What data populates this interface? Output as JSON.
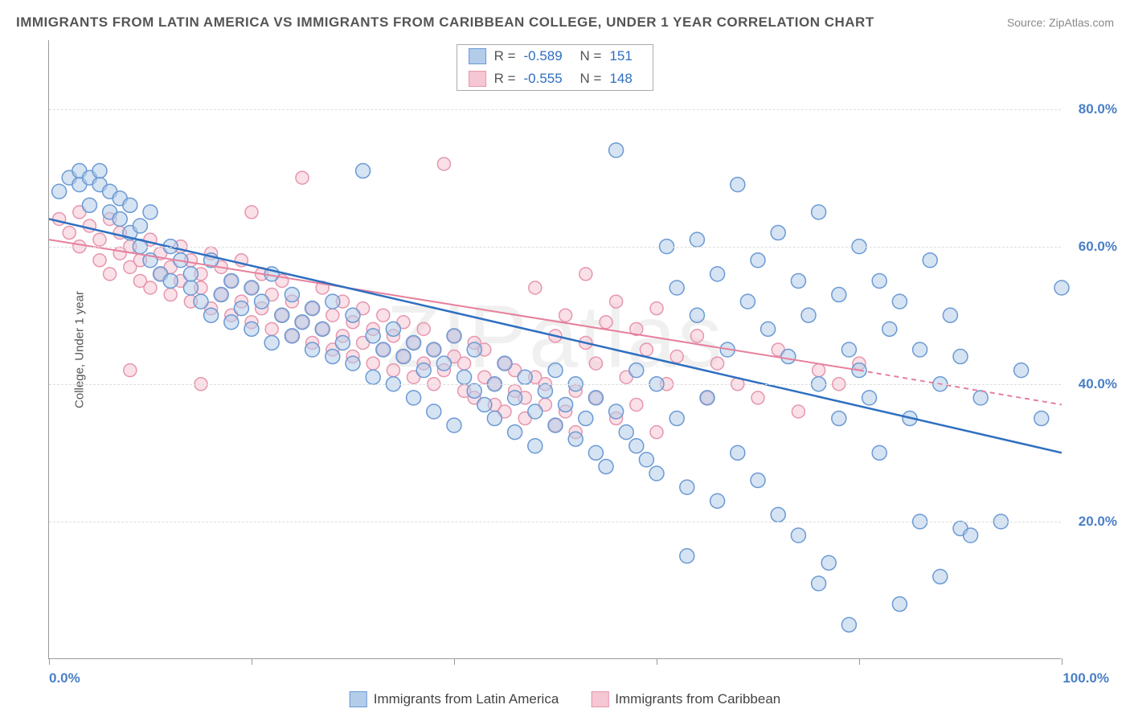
{
  "title": "IMMIGRANTS FROM LATIN AMERICA VS IMMIGRANTS FROM CARIBBEAN COLLEGE, UNDER 1 YEAR CORRELATION CHART",
  "source": "Source: ZipAtlas.com",
  "watermark": "ZIPatlas",
  "y_axis_title": "College, Under 1 year",
  "chart": {
    "type": "scatter-with-regression",
    "x_range": [
      0,
      100
    ],
    "y_range": [
      0,
      90
    ],
    "y_ticks": [
      20,
      40,
      60,
      80
    ],
    "y_tick_labels": [
      "20.0%",
      "40.0%",
      "60.0%",
      "80.0%"
    ],
    "x_ticks": [
      0,
      20,
      40,
      60,
      80,
      100
    ],
    "x_end_labels": [
      "0.0%",
      "100.0%"
    ],
    "marker_radius_blue": 9,
    "marker_radius_pink": 8,
    "marker_stroke_width": 1.5,
    "line_width_blue": 2.5,
    "line_width_pink": 2,
    "grid_color": "#dddddd",
    "axis_color": "#999999",
    "background": "#ffffff",
    "tick_label_color": "#4a7fc6"
  },
  "series": {
    "blue": {
      "label": "Immigrants from Latin America",
      "fill": "#b3ccea",
      "stroke": "#6b9ad4",
      "fill_opacity": 0.55,
      "line_color": "#2e6fc0",
      "r_value": "-0.589",
      "n_value": "151",
      "regression": {
        "x1": 0,
        "y1": 64,
        "x2": 100,
        "y2": 30
      },
      "points": [
        [
          1,
          68
        ],
        [
          2,
          70
        ],
        [
          3,
          69
        ],
        [
          3,
          71
        ],
        [
          4,
          70
        ],
        [
          4,
          66
        ],
        [
          5,
          69
        ],
        [
          5,
          71
        ],
        [
          6,
          68
        ],
        [
          6,
          65
        ],
        [
          7,
          64
        ],
        [
          7,
          67
        ],
        [
          8,
          66
        ],
        [
          8,
          62
        ],
        [
          9,
          63
        ],
        [
          9,
          60
        ],
        [
          10,
          65
        ],
        [
          10,
          58
        ],
        [
          11,
          56
        ],
        [
          12,
          60
        ],
        [
          12,
          55
        ],
        [
          13,
          58
        ],
        [
          14,
          54
        ],
        [
          14,
          56
        ],
        [
          15,
          52
        ],
        [
          16,
          58
        ],
        [
          16,
          50
        ],
        [
          17,
          53
        ],
        [
          18,
          55
        ],
        [
          18,
          49
        ],
        [
          19,
          51
        ],
        [
          20,
          54
        ],
        [
          20,
          48
        ],
        [
          21,
          52
        ],
        [
          22,
          46
        ],
        [
          22,
          56
        ],
        [
          23,
          50
        ],
        [
          24,
          47
        ],
        [
          24,
          53
        ],
        [
          25,
          49
        ],
        [
          26,
          45
        ],
        [
          26,
          51
        ],
        [
          27,
          48
        ],
        [
          28,
          44
        ],
        [
          28,
          52
        ],
        [
          29,
          46
        ],
        [
          30,
          50
        ],
        [
          30,
          43
        ],
        [
          31,
          71
        ],
        [
          32,
          47
        ],
        [
          32,
          41
        ],
        [
          33,
          45
        ],
        [
          34,
          48
        ],
        [
          34,
          40
        ],
        [
          35,
          44
        ],
        [
          36,
          46
        ],
        [
          36,
          38
        ],
        [
          37,
          42
        ],
        [
          38,
          45
        ],
        [
          38,
          36
        ],
        [
          39,
          43
        ],
        [
          40,
          47
        ],
        [
          40,
          34
        ],
        [
          41,
          41
        ],
        [
          42,
          39
        ],
        [
          42,
          45
        ],
        [
          43,
          37
        ],
        [
          44,
          40
        ],
        [
          44,
          35
        ],
        [
          45,
          43
        ],
        [
          46,
          38
        ],
        [
          46,
          33
        ],
        [
          47,
          41
        ],
        [
          48,
          36
        ],
        [
          48,
          31
        ],
        [
          49,
          39
        ],
        [
          50,
          34
        ],
        [
          50,
          42
        ],
        [
          51,
          37
        ],
        [
          52,
          32
        ],
        [
          52,
          40
        ],
        [
          53,
          35
        ],
        [
          54,
          30
        ],
        [
          54,
          38
        ],
        [
          55,
          28
        ],
        [
          56,
          36
        ],
        [
          56,
          74
        ],
        [
          57,
          33
        ],
        [
          58,
          31
        ],
        [
          58,
          42
        ],
        [
          59,
          29
        ],
        [
          60,
          40
        ],
        [
          60,
          27
        ],
        [
          61,
          60
        ],
        [
          62,
          54
        ],
        [
          62,
          35
        ],
        [
          63,
          25
        ],
        [
          64,
          50
        ],
        [
          64,
          61
        ],
        [
          65,
          38
        ],
        [
          66,
          23
        ],
        [
          66,
          56
        ],
        [
          67,
          45
        ],
        [
          68,
          69
        ],
        [
          68,
          30
        ],
        [
          69,
          52
        ],
        [
          70,
          26
        ],
        [
          70,
          58
        ],
        [
          71,
          48
        ],
        [
          72,
          21
        ],
        [
          72,
          62
        ],
        [
          73,
          44
        ],
        [
          74,
          18
        ],
        [
          74,
          55
        ],
        [
          75,
          50
        ],
        [
          76,
          40
        ],
        [
          76,
          65
        ],
        [
          77,
          14
        ],
        [
          78,
          53
        ],
        [
          78,
          35
        ],
        [
          79,
          45
        ],
        [
          80,
          60
        ],
        [
          80,
          42
        ],
        [
          81,
          38
        ],
        [
          82,
          55
        ],
        [
          82,
          30
        ],
        [
          83,
          48
        ],
        [
          84,
          8
        ],
        [
          84,
          52
        ],
        [
          85,
          35
        ],
        [
          86,
          45
        ],
        [
          86,
          20
        ],
        [
          87,
          58
        ],
        [
          88,
          40
        ],
        [
          88,
          12
        ],
        [
          89,
          50
        ],
        [
          90,
          19
        ],
        [
          90,
          44
        ],
        [
          91,
          18
        ],
        [
          92,
          38
        ],
        [
          94,
          20
        ],
        [
          96,
          42
        ],
        [
          98,
          35
        ],
        [
          100,
          54
        ],
        [
          63,
          15
        ],
        [
          79,
          5
        ],
        [
          76,
          11
        ]
      ]
    },
    "pink": {
      "label": "Immigrants from Caribbean",
      "fill": "#f5c6d3",
      "stroke": "#e696ae",
      "fill_opacity": 0.55,
      "line_color": "#e6809c",
      "r_value": "-0.555",
      "n_value": "148",
      "regression_solid": {
        "x1": 0,
        "y1": 61,
        "x2": 80,
        "y2": 42
      },
      "regression_dashed": {
        "x1": 80,
        "y1": 42,
        "x2": 100,
        "y2": 37
      },
      "points": [
        [
          1,
          64
        ],
        [
          2,
          62
        ],
        [
          3,
          65
        ],
        [
          3,
          60
        ],
        [
          4,
          63
        ],
        [
          5,
          61
        ],
        [
          5,
          58
        ],
        [
          6,
          64
        ],
        [
          6,
          56
        ],
        [
          7,
          59
        ],
        [
          7,
          62
        ],
        [
          8,
          57
        ],
        [
          8,
          60
        ],
        [
          9,
          55
        ],
        [
          9,
          58
        ],
        [
          10,
          61
        ],
        [
          10,
          54
        ],
        [
          11,
          56
        ],
        [
          11,
          59
        ],
        [
          12,
          53
        ],
        [
          12,
          57
        ],
        [
          13,
          55
        ],
        [
          13,
          60
        ],
        [
          14,
          52
        ],
        [
          14,
          58
        ],
        [
          15,
          54
        ],
        [
          15,
          56
        ],
        [
          16,
          51
        ],
        [
          16,
          59
        ],
        [
          17,
          53
        ],
        [
          17,
          57
        ],
        [
          18,
          50
        ],
        [
          18,
          55
        ],
        [
          19,
          52
        ],
        [
          19,
          58
        ],
        [
          20,
          49
        ],
        [
          20,
          54
        ],
        [
          21,
          51
        ],
        [
          21,
          56
        ],
        [
          22,
          48
        ],
        [
          22,
          53
        ],
        [
          23,
          50
        ],
        [
          23,
          55
        ],
        [
          24,
          47
        ],
        [
          24,
          52
        ],
        [
          25,
          49
        ],
        [
          25,
          70
        ],
        [
          26,
          51
        ],
        [
          26,
          46
        ],
        [
          27,
          48
        ],
        [
          27,
          54
        ],
        [
          28,
          45
        ],
        [
          28,
          50
        ],
        [
          29,
          47
        ],
        [
          29,
          52
        ],
        [
          30,
          44
        ],
        [
          30,
          49
        ],
        [
          31,
          46
        ],
        [
          31,
          51
        ],
        [
          32,
          43
        ],
        [
          32,
          48
        ],
        [
          33,
          45
        ],
        [
          33,
          50
        ],
        [
          34,
          42
        ],
        [
          34,
          47
        ],
        [
          35,
          44
        ],
        [
          35,
          49
        ],
        [
          36,
          41
        ],
        [
          36,
          46
        ],
        [
          37,
          43
        ],
        [
          37,
          48
        ],
        [
          38,
          40
        ],
        [
          38,
          45
        ],
        [
          39,
          42
        ],
        [
          39,
          72
        ],
        [
          40,
          44
        ],
        [
          40,
          47
        ],
        [
          41,
          39
        ],
        [
          41,
          43
        ],
        [
          42,
          46
        ],
        [
          42,
          38
        ],
        [
          43,
          41
        ],
        [
          43,
          45
        ],
        [
          44,
          37
        ],
        [
          44,
          40
        ],
        [
          45,
          43
        ],
        [
          45,
          36
        ],
        [
          46,
          39
        ],
        [
          46,
          42
        ],
        [
          47,
          35
        ],
        [
          47,
          38
        ],
        [
          48,
          41
        ],
        [
          48,
          54
        ],
        [
          49,
          37
        ],
        [
          49,
          40
        ],
        [
          50,
          34
        ],
        [
          50,
          47
        ],
        [
          51,
          36
        ],
        [
          51,
          50
        ],
        [
          52,
          39
        ],
        [
          52,
          33
        ],
        [
          53,
          46
        ],
        [
          53,
          56
        ],
        [
          54,
          38
        ],
        [
          54,
          43
        ],
        [
          55,
          49
        ],
        [
          56,
          35
        ],
        [
          56,
          52
        ],
        [
          57,
          41
        ],
        [
          58,
          37
        ],
        [
          58,
          48
        ],
        [
          59,
          45
        ],
        [
          60,
          33
        ],
        [
          60,
          51
        ],
        [
          61,
          40
        ],
        [
          62,
          44
        ],
        [
          64,
          47
        ],
        [
          65,
          38
        ],
        [
          66,
          43
        ],
        [
          68,
          40
        ],
        [
          70,
          38
        ],
        [
          72,
          45
        ],
        [
          74,
          36
        ],
        [
          76,
          42
        ],
        [
          78,
          40
        ],
        [
          80,
          43
        ],
        [
          8,
          42
        ],
        [
          15,
          40
        ],
        [
          20,
          65
        ]
      ]
    }
  },
  "legend_top": {
    "r_label": "R =",
    "n_label": "N ="
  }
}
